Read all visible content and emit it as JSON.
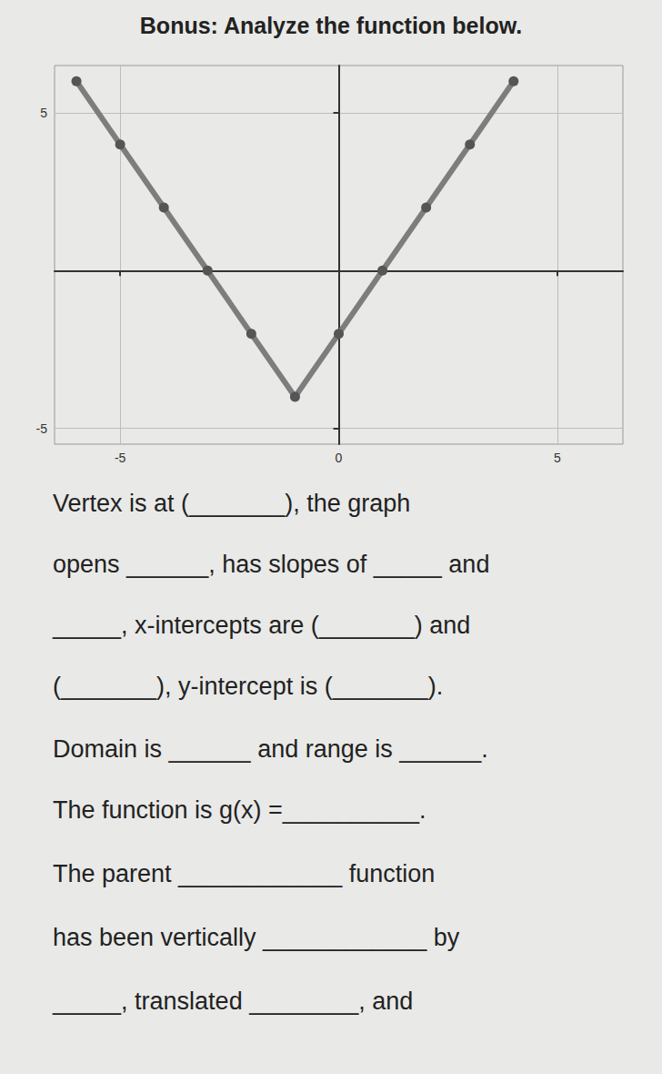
{
  "chart_data": {
    "type": "line",
    "title": "Bonus: Analyze the function below.",
    "x": [
      -6,
      -5,
      -4,
      -3,
      -2,
      -1,
      0,
      1,
      2,
      3,
      4
    ],
    "values": [
      6,
      4,
      2,
      0,
      -2,
      -4,
      -2,
      0,
      2,
      4,
      6
    ],
    "color": "#7d7d7d",
    "marker": "circle",
    "line_style": "solid",
    "xlim": [
      -6.5,
      6.5
    ],
    "ylim": [
      -5.5,
      6.5
    ],
    "xticks": [
      -5,
      0,
      5
    ],
    "yticks": [
      -5,
      5
    ],
    "grid": true,
    "annotations": [
      "Vertex is at (_______), the graph",
      "opens ______, has slopes of _____ and",
      "_____, x-intercepts are (_______) and",
      "(_______), y-intercept is (_______).",
      "Domain is ______ and range is ______.",
      "The function is g(x) =__________.",
      "The parent ____________ function",
      "has been vertically ____________ by",
      "_____, translated ________, and"
    ]
  }
}
